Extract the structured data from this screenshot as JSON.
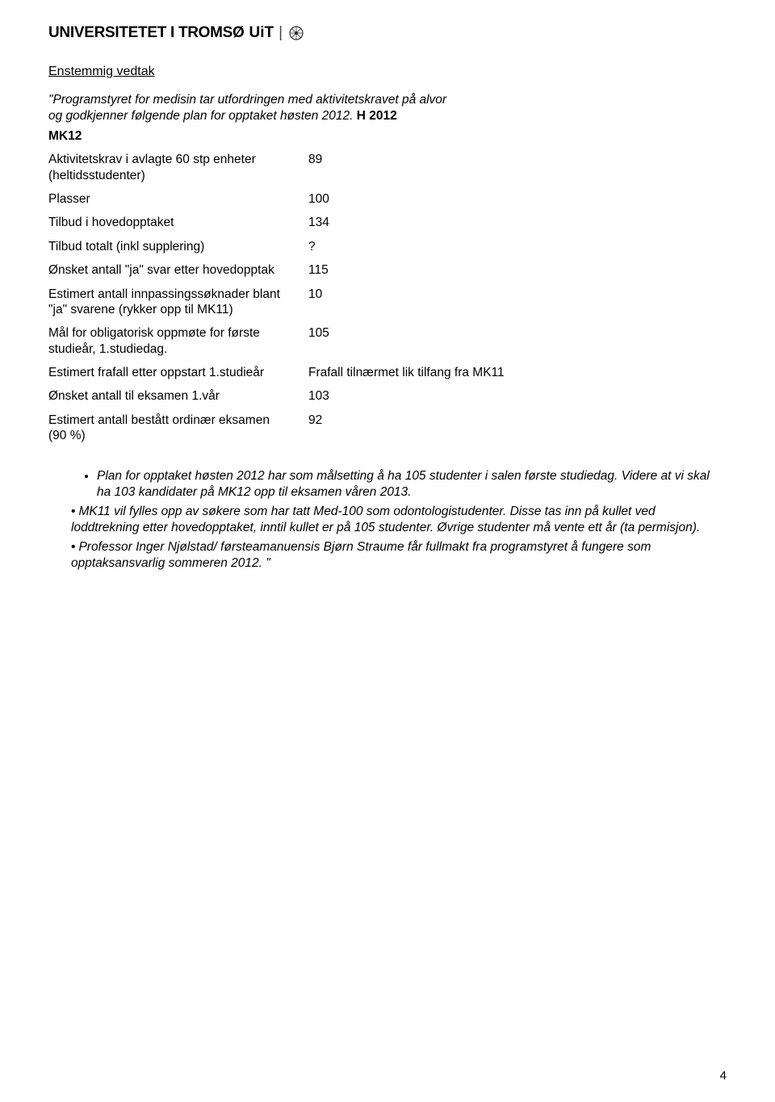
{
  "header": {
    "brand1": "UNIVERSITETET I TROMSØ",
    "brand2": "UiT",
    "separator": "|"
  },
  "subtitle": "Enstemmig vedtak",
  "intro_line1": "\"Programstyret for medisin tar utfordringen med aktivitetskravet på alvor",
  "intro_line2_prefix": "og godkjenner følgende plan for opptaket høsten 2012. ",
  "intro_code": "H 2012",
  "section_label": "MK12",
  "rows": [
    {
      "label": "Aktivitetskrav i avlagte 60 stp enheter (heltidsstudenter)",
      "value": "89"
    },
    {
      "label": "Plasser",
      "value": "100"
    },
    {
      "label": "Tilbud i hovedopptaket",
      "value": "134"
    },
    {
      "label": "Tilbud totalt (inkl supplering)",
      "value": "?"
    },
    {
      "label": "Ønsket antall \"ja\" svar etter hovedopptak",
      "value": "115"
    },
    {
      "label": "Estimert antall innpassingssøknader blant \"ja\" svarene (rykker opp til MK11)",
      "value": "10"
    },
    {
      "label": "Mål for obligatorisk oppmøte for første studieår, 1.studiedag.",
      "value": "105"
    },
    {
      "label": "Estimert frafall etter oppstart 1.studieår",
      "value": "Frafall tilnærmet lik tilfang fra MK11"
    },
    {
      "label": "Ønsket antall til eksamen 1.vår",
      "value": "103"
    },
    {
      "label": "Estimert antall bestått ordinær eksamen (90 %)",
      "value": "92"
    }
  ],
  "bullets": [
    {
      "kind": "sub",
      "text": "Plan for opptaket høsten 2012 har som målsetting å ha 105 studenter i salen første studiedag. Videre at vi skal ha 103 kandidater på MK12 opp til eksamen våren 2013.",
      "ital": true
    },
    {
      "kind": "main",
      "text": "MK11 vil fylles opp av søkere som har tatt Med-100 som odontologistudenter. Disse tas inn på kullet ved loddtrekning etter hovedopptaket, inntil kullet er på 105 studenter. Øvrige studenter må vente ett år (ta permisjon).",
      "ital": true
    },
    {
      "kind": "main",
      "text": "Professor Inger Njølstad/ førsteamanuensis Bjørn Straume får fullmakt fra programstyret å fungere som opptaksansvarlig sommeren 2012. \"",
      "ital": true
    }
  ],
  "page_number": "4"
}
